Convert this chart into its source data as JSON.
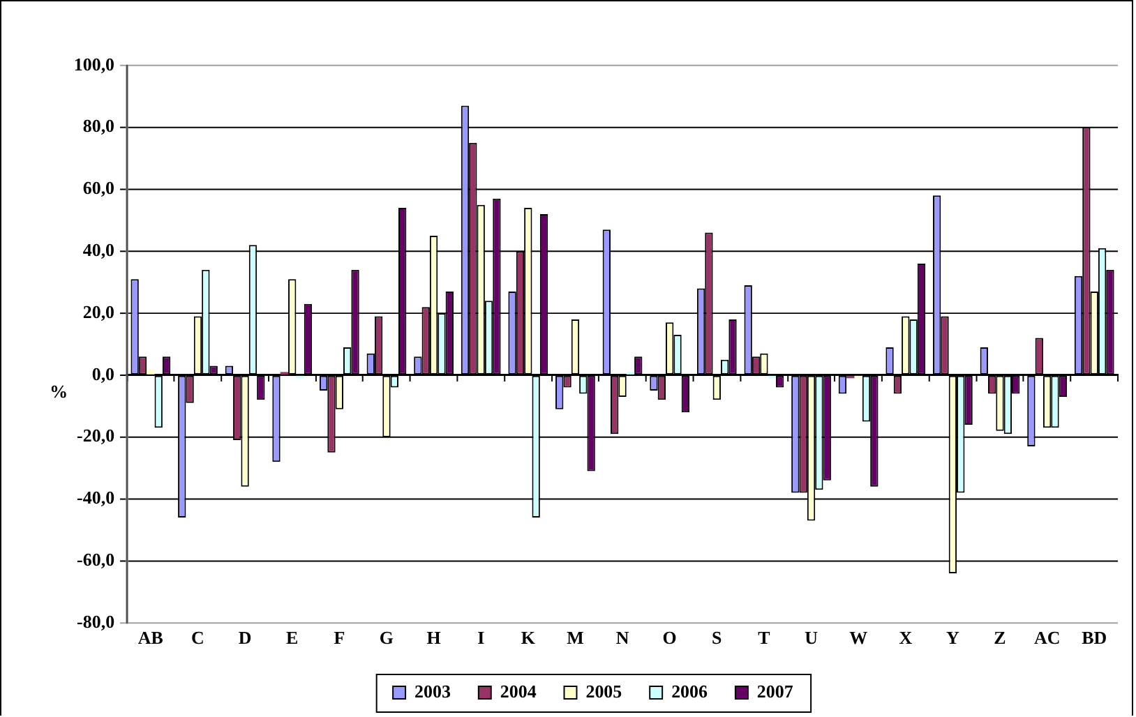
{
  "chart_data": {
    "type": "bar",
    "ylabel": "%",
    "categories": [
      "AB",
      "C",
      "D",
      "E",
      "F",
      "G",
      "H",
      "I",
      "K",
      "M",
      "N",
      "O",
      "S",
      "T",
      "U",
      "W",
      "X",
      "Y",
      "Z",
      "AC",
      "BD"
    ],
    "series": [
      {
        "name": "2003",
        "color": "#9999ff",
        "values": [
          31,
          -46,
          3,
          -28,
          -5,
          7,
          6,
          87,
          27,
          -11,
          47,
          -5,
          28,
          29,
          -38,
          -6,
          9,
          58,
          9,
          -23,
          32
        ]
      },
      {
        "name": "2004",
        "color": "#993366",
        "values": [
          6,
          -9,
          -21,
          1,
          -25,
          19,
          22,
          75,
          40,
          -4,
          -19,
          -8,
          46,
          6,
          -38,
          -1,
          -6,
          19,
          -6,
          12,
          80
        ]
      },
      {
        "name": "2005",
        "color": "#ffffcc",
        "values": [
          2,
          19,
          -36,
          31,
          -11,
          -20,
          45,
          55,
          54,
          18,
          -7,
          17,
          -8,
          7,
          -47,
          -1,
          19,
          -64,
          -18,
          -17,
          27
        ]
      },
      {
        "name": "2006",
        "color": "#ccffff",
        "values": [
          -17,
          34,
          42,
          -1,
          9,
          -4,
          20,
          24,
          -46,
          -6,
          1,
          13,
          5,
          -1,
          -37,
          -15,
          18,
          -38,
          -19,
          -17,
          41
        ]
      },
      {
        "name": "2007",
        "color": "#660066",
        "values": [
          6,
          3,
          -8,
          23,
          34,
          54,
          27,
          57,
          52,
          -31,
          6,
          -12,
          18,
          -4,
          -34,
          -36,
          36,
          -16,
          -6,
          -7,
          34
        ]
      }
    ],
    "ylim": [
      -80,
      100
    ],
    "yticks": [
      {
        "value": -80,
        "label": "-80,0"
      },
      {
        "value": -60,
        "label": "-60,0"
      },
      {
        "value": -40,
        "label": "-40,0"
      },
      {
        "value": -20,
        "label": "-20,0"
      },
      {
        "value": 0,
        "label": "0,0"
      },
      {
        "value": 20,
        "label": "20,0"
      },
      {
        "value": 40,
        "label": "40,0"
      },
      {
        "value": 60,
        "label": "60,0"
      },
      {
        "value": 80,
        "label": "80,0"
      },
      {
        "value": 100,
        "label": "100,0"
      }
    ],
    "grid": "y",
    "legend": "bottom"
  }
}
